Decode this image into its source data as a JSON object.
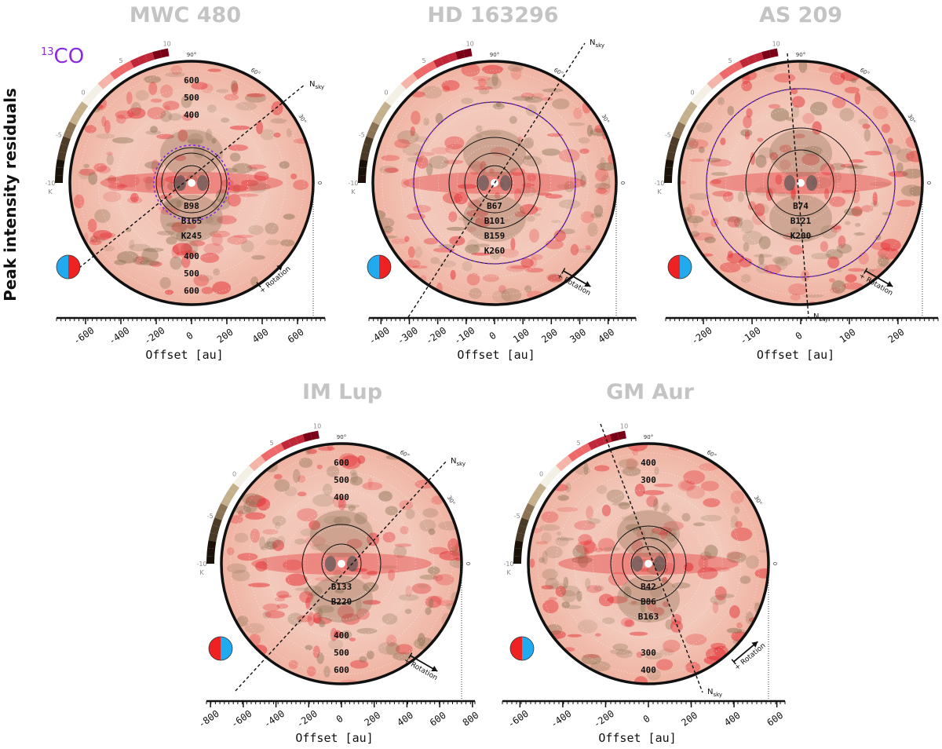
{
  "figure": {
    "ylabel": "Peak intensity residuals",
    "tracer_sup": "13",
    "tracer": "CO",
    "tracer_color": "#8a2be2",
    "colorbar_ticks": [
      "10",
      "5",
      "0",
      "-5",
      "-10"
    ],
    "colorbar_unit": "K",
    "angle_labels": [
      "90°",
      "60°",
      "30°",
      "0"
    ],
    "north_label": "N",
    "north_sub": "sky",
    "rotation_label": "+ Rotation",
    "offset_label": "Offset [au]"
  },
  "chart_data": [
    {
      "type": "heatmap",
      "title": "MWC 480",
      "xlabel": "Offset [au]",
      "xlim": [
        -760,
        760
      ],
      "xticks": [
        "-600",
        "-400",
        "-200",
        "0",
        "200",
        "400",
        "600"
      ],
      "rings": [
        "B98",
        "B165",
        "K245"
      ],
      "radius_labels_top": [
        "600",
        "500",
        "400"
      ],
      "radius_labels_bottom": [
        "400",
        "500",
        "600"
      ],
      "rotation_direction": "counter-clockwise",
      "colors": {
        "positive": "#e3242b",
        "negative": "#8b7355"
      }
    },
    {
      "type": "heatmap",
      "title": "HD 163296",
      "xlabel": "Offset [au]",
      "xlim": [
        -470,
        470
      ],
      "xticks": [
        "-400",
        "-300",
        "-200",
        "-100",
        "0",
        "100",
        "200",
        "300",
        "400"
      ],
      "rings": [
        "B67",
        "B101",
        "B159",
        "K260"
      ],
      "radius_labels_top": [],
      "radius_labels_bottom": [],
      "rotation_direction": "clockwise",
      "colors": {
        "positive": "#e3242b",
        "negative": "#8b7355"
      }
    },
    {
      "type": "heatmap",
      "title": "AS 209",
      "xlabel": "Offset [au]",
      "xlim": [
        -280,
        280
      ],
      "xticks": [
        "-200",
        "-100",
        "0",
        "100",
        "200"
      ],
      "rings": [
        "B74",
        "B121",
        "K200"
      ],
      "radius_labels_top": [],
      "radius_labels_bottom": [],
      "rotation_direction": "clockwise",
      "colors": {
        "positive": "#e3242b",
        "negative": "#8b7355"
      }
    },
    {
      "type": "heatmap",
      "title": "IM Lup",
      "xlabel": "Offset [au]",
      "xlim": [
        -820,
        820
      ],
      "xticks": [
        "-800",
        "-600",
        "-400",
        "-200",
        "0",
        "200",
        "400",
        "600",
        "800"
      ],
      "rings": [
        "B133",
        "B220"
      ],
      "radius_labels_top": [
        "600",
        "500",
        "400"
      ],
      "radius_labels_bottom": [
        "400",
        "500",
        "600"
      ],
      "rotation_direction": "clockwise",
      "colors": {
        "positive": "#e3242b",
        "negative": "#8b7355"
      }
    },
    {
      "type": "heatmap",
      "title": "GM Aur",
      "xlabel": "Offset [au]",
      "xlim": [
        -660,
        660
      ],
      "xticks": [
        "-600",
        "-400",
        "-200",
        "0",
        "200",
        "400",
        "600"
      ],
      "rings": [
        "B42",
        "B86",
        "B163"
      ],
      "radius_labels_top": [
        "400",
        "300"
      ],
      "radius_labels_bottom": [
        "300",
        "400"
      ],
      "rotation_direction": "counter-clockwise",
      "colors": {
        "positive": "#e3242b",
        "negative": "#8b7355"
      }
    }
  ]
}
